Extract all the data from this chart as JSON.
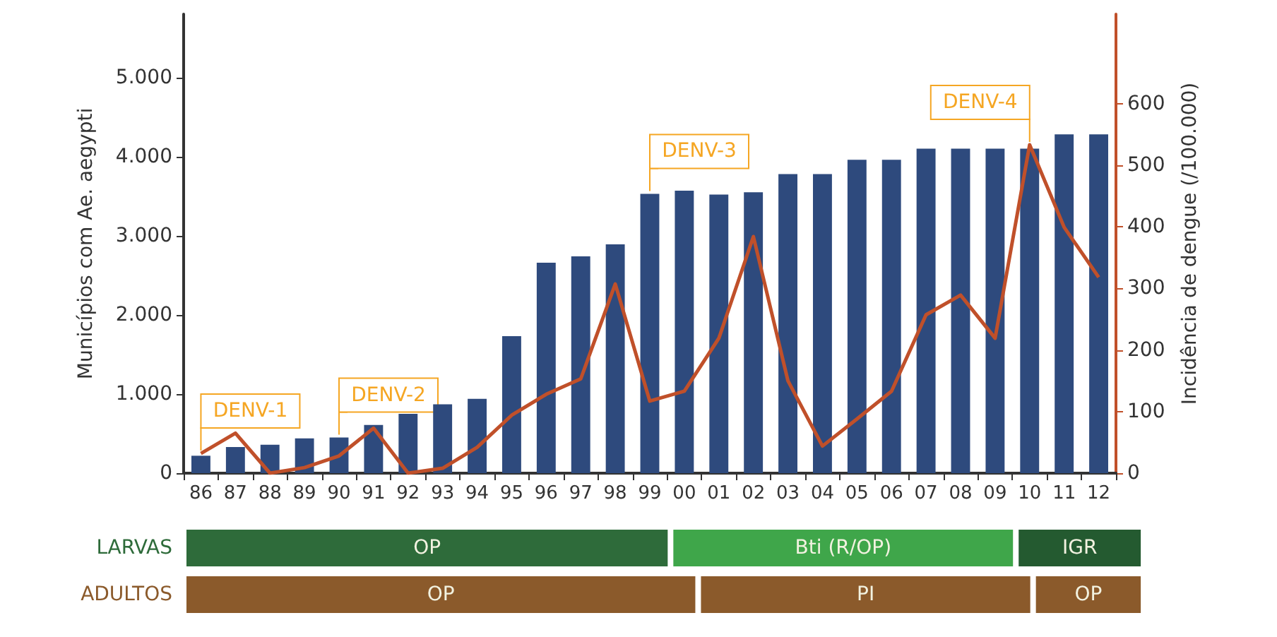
{
  "chart_data": {
    "type": "bar",
    "ylabel": "Municípios com Ae. aegypti",
    "y2label": "Incidência de dengue (/100.000)",
    "categories": [
      "86",
      "87",
      "88",
      "89",
      "90",
      "91",
      "92",
      "93",
      "94",
      "95",
      "96",
      "97",
      "98",
      "99",
      "00",
      "01",
      "02",
      "03",
      "04",
      "05",
      "06",
      "07",
      "08",
      "09",
      "10",
      "11",
      "12"
    ],
    "series": [
      {
        "color": "#2e4a7d",
        "values": [
          220,
          330,
          360,
          440,
          450,
          610,
          750,
          870,
          940,
          1730,
          2660,
          2740,
          2890,
          3530,
          3570,
          3520,
          3550,
          3780,
          3780,
          3960,
          3960,
          4100,
          4100,
          4100,
          4100,
          4280,
          4280
        ]
      },
      {
        "type": "line",
        "axis": "y2",
        "color": "#c0502a",
        "values": [
          32,
          65,
          0,
          9,
          28,
          73,
          0,
          8,
          42,
          94,
          128,
          153,
          307,
          117,
          133,
          219,
          384,
          150,
          44,
          88,
          133,
          257,
          289,
          219,
          533,
          399,
          318
        ]
      }
    ],
    "ylim": [
      0,
      5800
    ],
    "yticks": [
      0,
      {
        "value": 1000,
        "label": "1.000"
      },
      {
        "value": 2000,
        "label": "2.000"
      },
      {
        "value": 3000,
        "label": "3.000"
      },
      {
        "value": 4000,
        "label": "4.000"
      },
      {
        "value": 5000,
        "label": "5.000"
      }
    ],
    "y2lim": [
      0,
      745
    ],
    "y2ticks": [
      0,
      100,
      200,
      300,
      400,
      500,
      600
    ],
    "marker": "none",
    "grid": false,
    "annotations": [
      "DENV-1",
      "DENV-2",
      "DENV-3",
      "DENV-4",
      "LARVAS",
      "OP",
      "Bti (R/OP)",
      "IGR",
      "ADULTOS",
      "OP",
      "PI",
      "OP"
    ]
  }
}
